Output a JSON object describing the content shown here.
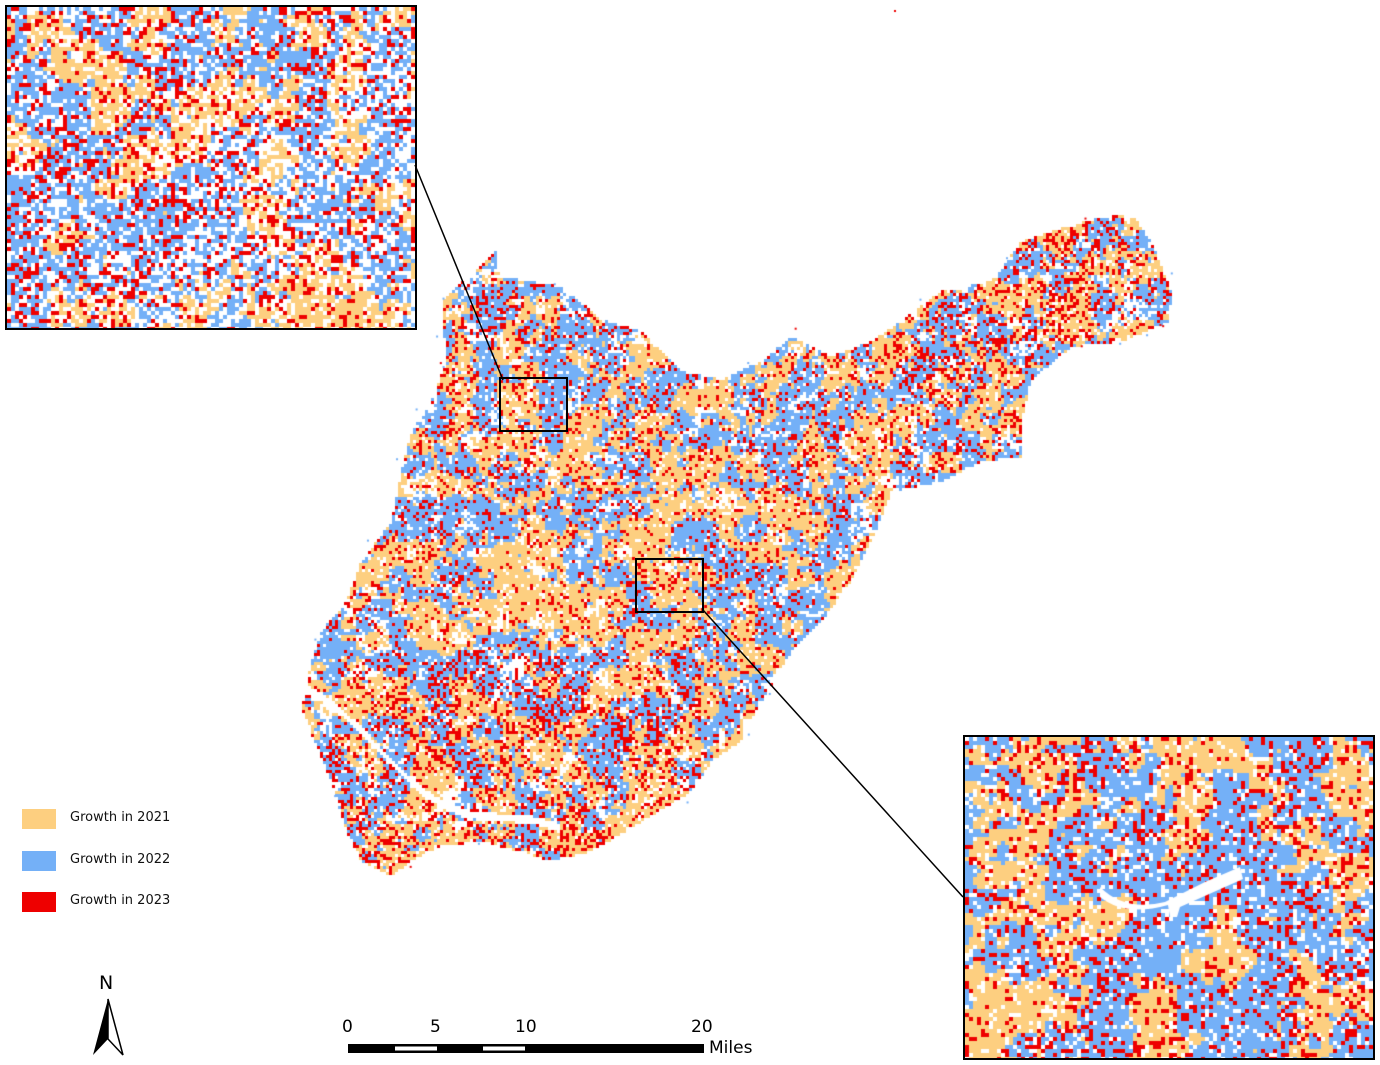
{
  "legend": {
    "items": [
      {
        "label": "Growth in 2021",
        "color": "#fdcf80"
      },
      {
        "label": "Growth in 2022",
        "color": "#74b0f7"
      },
      {
        "label": "Growth in 2023",
        "color": "#ee0000"
      }
    ]
  },
  "north_arrow": {
    "label": "N",
    "icon": "north-arrow-icon"
  },
  "scale_bar": {
    "ticks": [
      "0",
      "5",
      "10",
      "20"
    ],
    "unit": "Miles"
  },
  "colors": {
    "growth_2021": "#fdcf80",
    "growth_2022": "#74b0f7",
    "growth_2023": "#ee0000",
    "background": "#ffffff",
    "frame": "#000000"
  }
}
